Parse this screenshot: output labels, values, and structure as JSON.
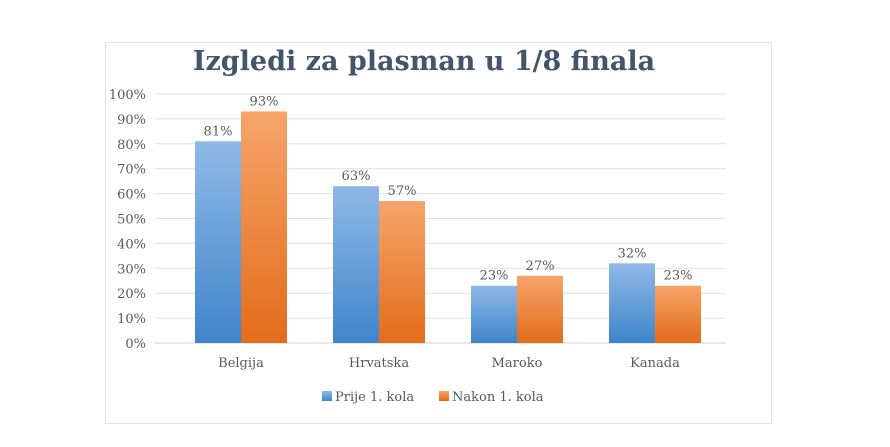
{
  "chart_data": {
    "type": "bar",
    "title": "Izgledi za plasman u 1/8 finala",
    "categories": [
      "Belgija",
      "Hrvatska",
      "Maroko",
      "Kanada"
    ],
    "series": [
      {
        "name": "Prije 1. kola",
        "values": [
          81,
          63,
          23,
          32
        ],
        "labels": [
          "81%",
          "63%",
          "23%",
          "32%"
        ],
        "color": "#5b9bd5"
      },
      {
        "name": "Nakon 1. kola",
        "values": [
          93,
          57,
          27,
          23
        ],
        "labels": [
          "93%",
          "57%",
          "27%",
          "23%"
        ],
        "color": "#ed7d31"
      }
    ],
    "yticks": [
      "0%",
      "10%",
      "20%",
      "30%",
      "40%",
      "50%",
      "60%",
      "70%",
      "80%",
      "90%",
      "100%"
    ],
    "ylim": [
      0,
      100
    ],
    "grid": true,
    "legend": "bottom"
  }
}
